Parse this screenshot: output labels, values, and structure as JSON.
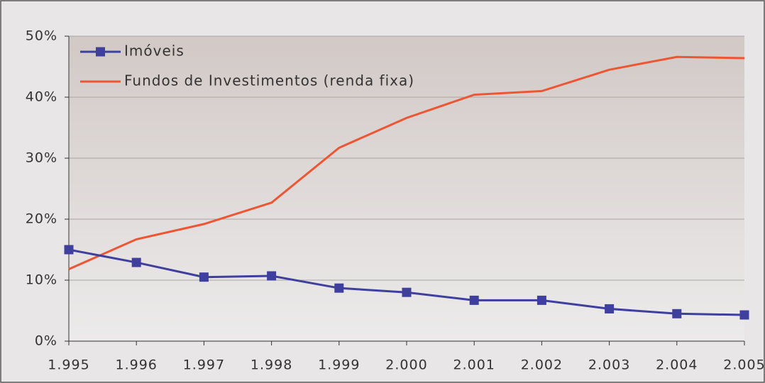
{
  "chart_data": {
    "type": "line",
    "categories": [
      "1.995",
      "1.996",
      "1.997",
      "1.998",
      "1.999",
      "2.000",
      "2.001",
      "2.002",
      "2.003",
      "2.004",
      "2.005"
    ],
    "series": [
      {
        "name": "Imóveis",
        "color": "#3f3f9e",
        "marker": "square",
        "values": [
          15.0,
          12.9,
          10.5,
          10.7,
          8.7,
          8.0,
          6.7,
          6.7,
          5.3,
          4.5,
          4.3
        ]
      },
      {
        "name": "Fundos de Investimentos (renda fixa)",
        "color": "#ee5533",
        "values": [
          11.8,
          16.7,
          19.2,
          22.7,
          31.7,
          36.6,
          40.4,
          41.0,
          44.5,
          46.6,
          46.4
        ]
      }
    ],
    "ylim": [
      0,
      50
    ],
    "yticks": [
      {
        "value": 0,
        "label": "0%"
      },
      {
        "value": 10,
        "label": "10%"
      },
      {
        "value": 20,
        "label": "20%"
      },
      {
        "value": 30,
        "label": "30%"
      },
      {
        "value": 40,
        "label": "40%"
      },
      {
        "value": 50,
        "label": "50%"
      }
    ],
    "grid": true,
    "legend": "top-left"
  }
}
